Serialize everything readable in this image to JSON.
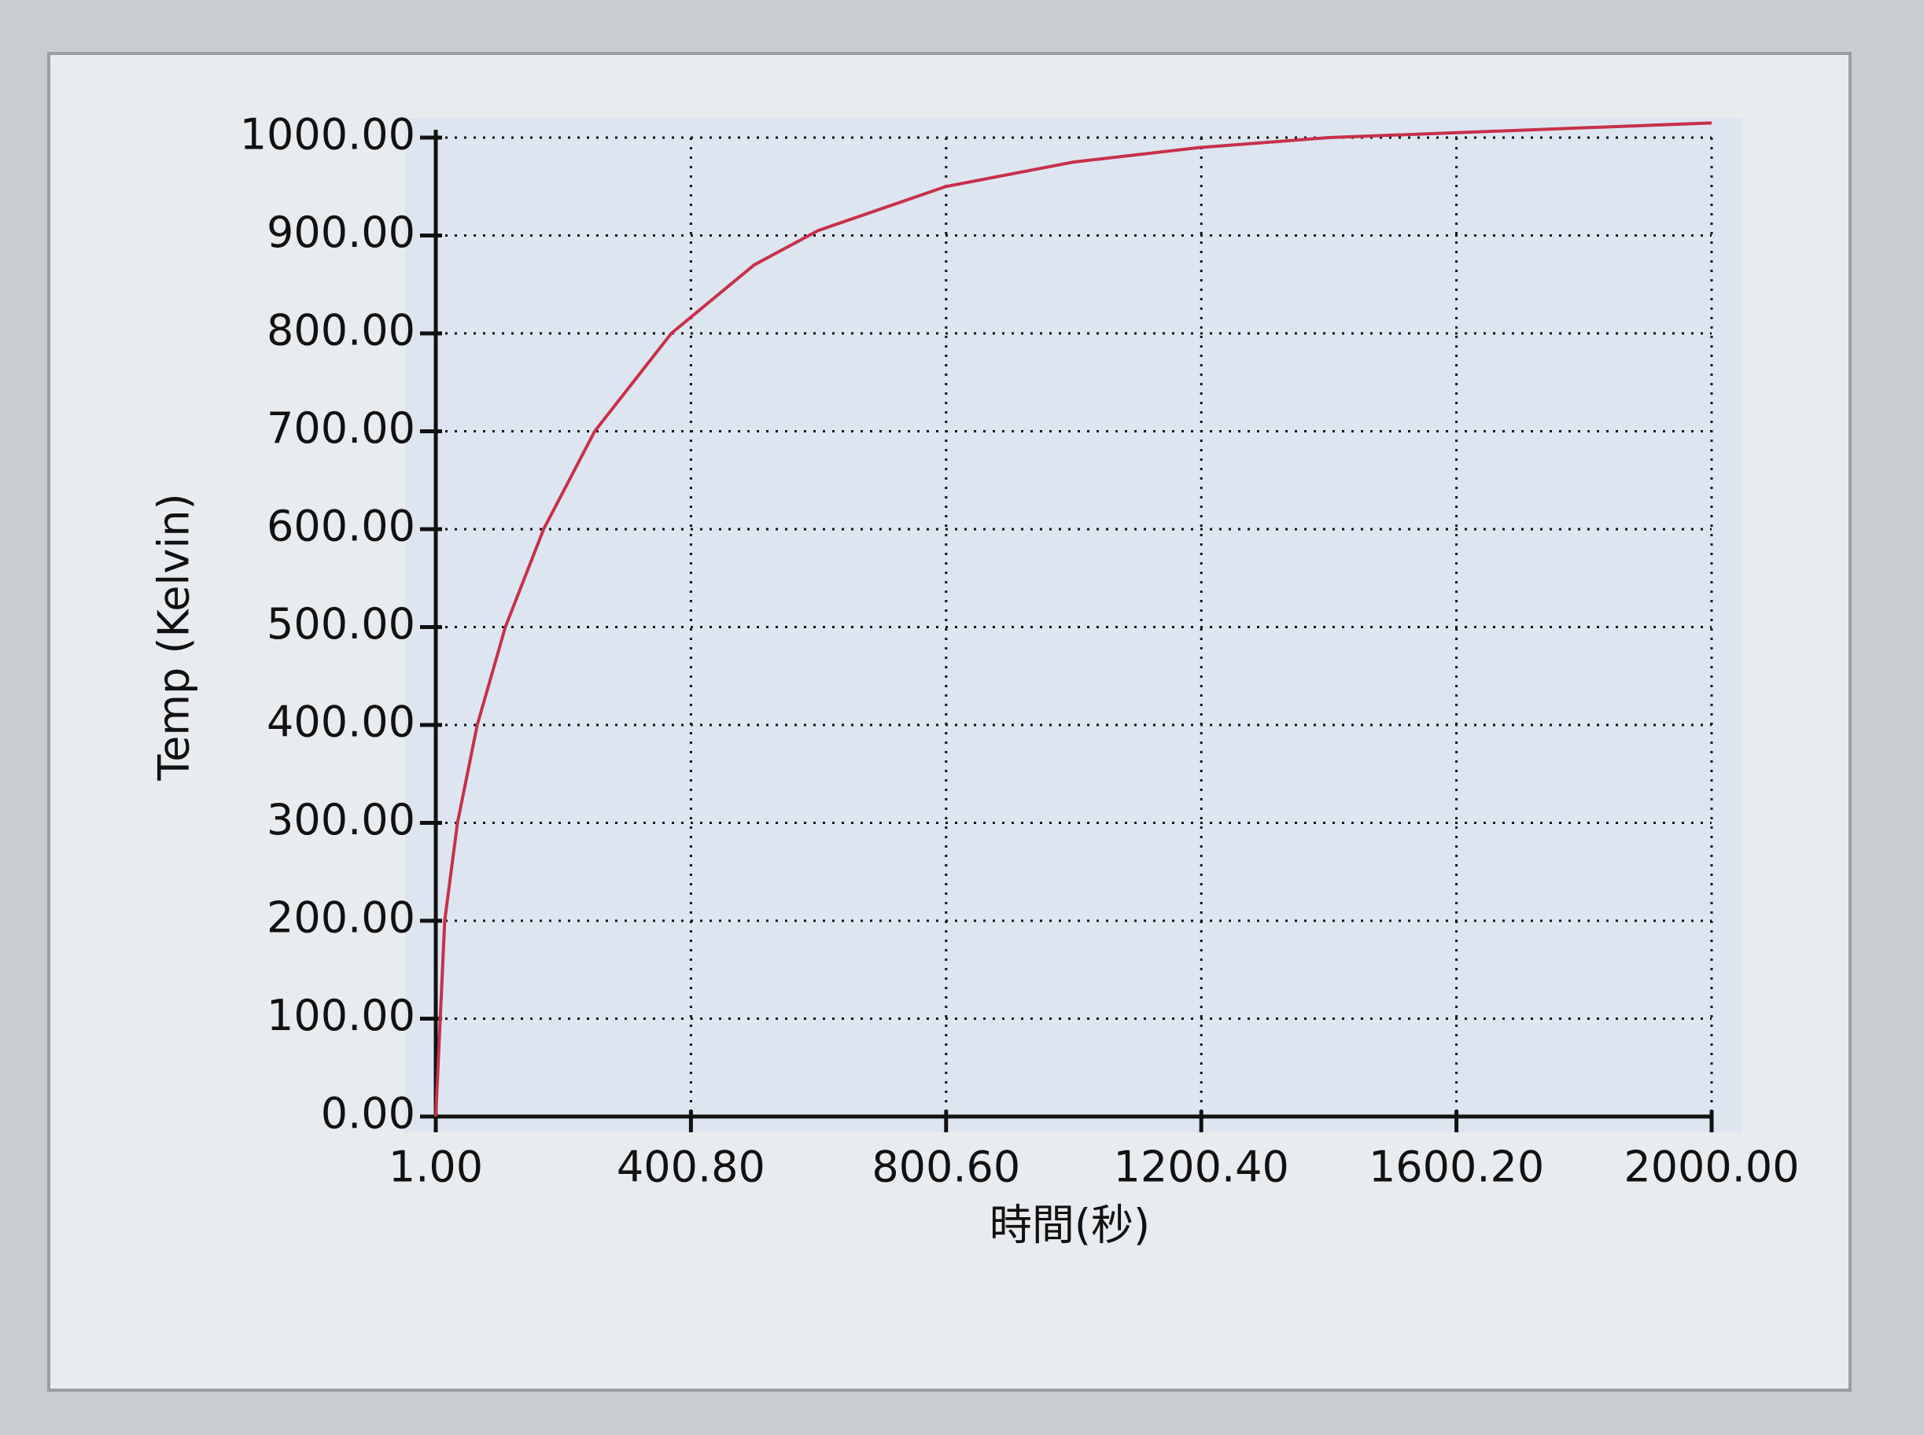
{
  "chart_data": {
    "type": "line",
    "x_label": "時間(秒)",
    "y_label": "Temp  (Kelvin)",
    "xlim": [
      1,
      2000
    ],
    "ylim": [
      0,
      1000
    ],
    "xticks": [
      {
        "value": 1,
        "label": "1.00"
      },
      {
        "value": 400.8,
        "label": "400.80"
      },
      {
        "value": 800.6,
        "label": "800.60"
      },
      {
        "value": 1200.4,
        "label": "1200.40"
      },
      {
        "value": 1600.2,
        "label": "1600.20"
      },
      {
        "value": 2000,
        "label": "2000.00"
      }
    ],
    "yticks": [
      {
        "value": 0,
        "label": "0.00"
      },
      {
        "value": 100,
        "label": "100.00"
      },
      {
        "value": 200,
        "label": "200.00"
      },
      {
        "value": 300,
        "label": "300.00"
      },
      {
        "value": 400,
        "label": "400.00"
      },
      {
        "value": 500,
        "label": "500.00"
      },
      {
        "value": 600,
        "label": "600.00"
      },
      {
        "value": 700,
        "label": "700.00"
      },
      {
        "value": 800,
        "label": "800.00"
      },
      {
        "value": 900,
        "label": "900.00"
      },
      {
        "value": 1000,
        "label": "1000.00"
      }
    ],
    "grid": true,
    "x": [
      1,
      15,
      35,
      66,
      110,
      170,
      250,
      370,
      500,
      600,
      800,
      1000,
      1200,
      1400,
      1600,
      2000
    ],
    "series": [
      {
        "color": "#c8304a",
        "values": [
          0,
          200,
          300,
          400,
          500,
          600,
          700,
          800,
          870,
          905,
          950,
          975,
          990,
          1000,
          1005,
          1015
        ]
      }
    ]
  }
}
